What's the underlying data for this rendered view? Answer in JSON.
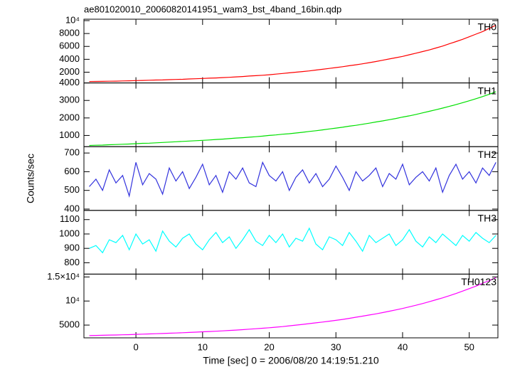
{
  "chart_data": {
    "type": "line",
    "title": "ae801020010_20060820141951_wam3_bst_4band_16bin.qdp",
    "x_label": "Time [sec] 0 = 2006/08/20 14:19:51.210",
    "y_label": "Counts/sec",
    "xlim": [
      -7.8,
      54.3
    ],
    "xticks": [
      0,
      10,
      20,
      30,
      40,
      50
    ],
    "x": [
      -7,
      -6,
      -5,
      -4,
      -3,
      -2,
      -1,
      0,
      1,
      2,
      3,
      4,
      5,
      6,
      7,
      8,
      9,
      10,
      11,
      12,
      13,
      14,
      15,
      16,
      17,
      18,
      19,
      20,
      21,
      22,
      23,
      24,
      25,
      26,
      27,
      28,
      29,
      30,
      31,
      32,
      33,
      34,
      35,
      36,
      37,
      38,
      39,
      40,
      41,
      42,
      43,
      44,
      45,
      46,
      47,
      48,
      49,
      50,
      51,
      52,
      53,
      54
    ],
    "series": [
      {
        "name": "TH0",
        "color": "#ff0000",
        "ylim": [
          333,
          10222
        ],
        "yticks": [
          2000,
          4000,
          6000,
          8000,
          {
            "value": 10000,
            "label": "10⁴"
          }
        ],
        "values": [
          550,
          560,
          580,
          600,
          610,
          640,
          660,
          700,
          720,
          750,
          780,
          800,
          840,
          870,
          900,
          950,
          980,
          1030,
          1070,
          1110,
          1160,
          1210,
          1270,
          1330,
          1400,
          1460,
          1530,
          1600,
          1700,
          1800,
          1900,
          2000,
          2100,
          2200,
          2330,
          2450,
          2580,
          2720,
          2850,
          3000,
          3150,
          3300,
          3480,
          3650,
          3850,
          4050,
          4250,
          4450,
          4700,
          4950,
          5200,
          5450,
          5750,
          6050,
          6400,
          6750,
          7100,
          7500,
          7900,
          8300,
          8800,
          9300
        ]
      },
      {
        "name": "TH1",
        "color": "#00e000",
        "ylim": [
          360,
          4000
        ],
        "yticks": [
          1000,
          2000,
          3000,
          4000
        ],
        "values": [
          430,
          440,
          450,
          470,
          480,
          500,
          510,
          530,
          550,
          560,
          580,
          600,
          620,
          640,
          660,
          680,
          700,
          720,
          740,
          770,
          790,
          820,
          850,
          870,
          900,
          930,
          960,
          1000,
          1030,
          1070,
          1100,
          1140,
          1180,
          1230,
          1270,
          1320,
          1370,
          1420,
          1470,
          1530,
          1580,
          1640,
          1700,
          1770,
          1830,
          1900,
          1970,
          2050,
          2120,
          2200,
          2290,
          2380,
          2470,
          2560,
          2660,
          2760,
          2870,
          2980,
          3100,
          3220,
          3350,
          3500
        ]
      },
      {
        "name": "TH2",
        "color": "#3333dd",
        "ylim": [
          393,
          734
        ],
        "yticks": [
          400,
          500,
          600,
          700
        ],
        "values": [
          520,
          560,
          500,
          610,
          540,
          580,
          470,
          650,
          530,
          590,
          560,
          480,
          620,
          550,
          600,
          510,
          570,
          640,
          530,
          580,
          490,
          600,
          560,
          620,
          540,
          520,
          650,
          580,
          550,
          600,
          500,
          570,
          610,
          540,
          590,
          520,
          560,
          630,
          570,
          500,
          600,
          550,
          580,
          620,
          520,
          590,
          560,
          640,
          530,
          570,
          600,
          550,
          620,
          490,
          580,
          640,
          560,
          600,
          540,
          620,
          580,
          650
        ]
      },
      {
        "name": "TH3",
        "color": "#00ffff",
        "ylim": [
          721,
          1164
        ],
        "yticks": [
          800,
          900,
          1000,
          1100
        ],
        "values": [
          900,
          920,
          870,
          960,
          940,
          990,
          890,
          1000,
          930,
          960,
          880,
          1020,
          950,
          910,
          970,
          1000,
          930,
          890,
          960,
          1010,
          940,
          980,
          900,
          960,
          1030,
          950,
          920,
          990,
          940,
          1000,
          910,
          970,
          950,
          1040,
          930,
          890,
          980,
          960,
          920,
          1010,
          950,
          880,
          990,
          940,
          970,
          1000,
          920,
          960,
          1030,
          950,
          910,
          980,
          940,
          1000,
          960,
          920,
          990,
          950,
          1010,
          970,
          940,
          990
        ]
      },
      {
        "name": "TH0123",
        "color": "#ff00ff",
        "ylim": [
          2350,
          15590
        ],
        "yticks": [
          5000,
          {
            "value": 10000,
            "label": "10⁴"
          },
          {
            "value": 15000,
            "label": "1.5×10⁴"
          }
        ],
        "values": [
          2830,
          2850,
          2880,
          2920,
          2940,
          2990,
          3020,
          3080,
          3120,
          3160,
          3210,
          3250,
          3310,
          3360,
          3410,
          3480,
          3530,
          3600,
          3660,
          3730,
          3800,
          3880,
          3960,
          4050,
          4150,
          4240,
          4340,
          4450,
          4570,
          4680,
          4840,
          5000,
          5150,
          5310,
          5470,
          5630,
          5810,
          5990,
          6180,
          6400,
          6630,
          6850,
          7090,
          7330,
          7600,
          7870,
          8150,
          8460,
          8790,
          9120,
          9470,
          9850,
          10250,
          10650,
          11100,
          11550,
          12060,
          12570,
          13100,
          13700,
          14250,
          14850
        ]
      }
    ]
  }
}
